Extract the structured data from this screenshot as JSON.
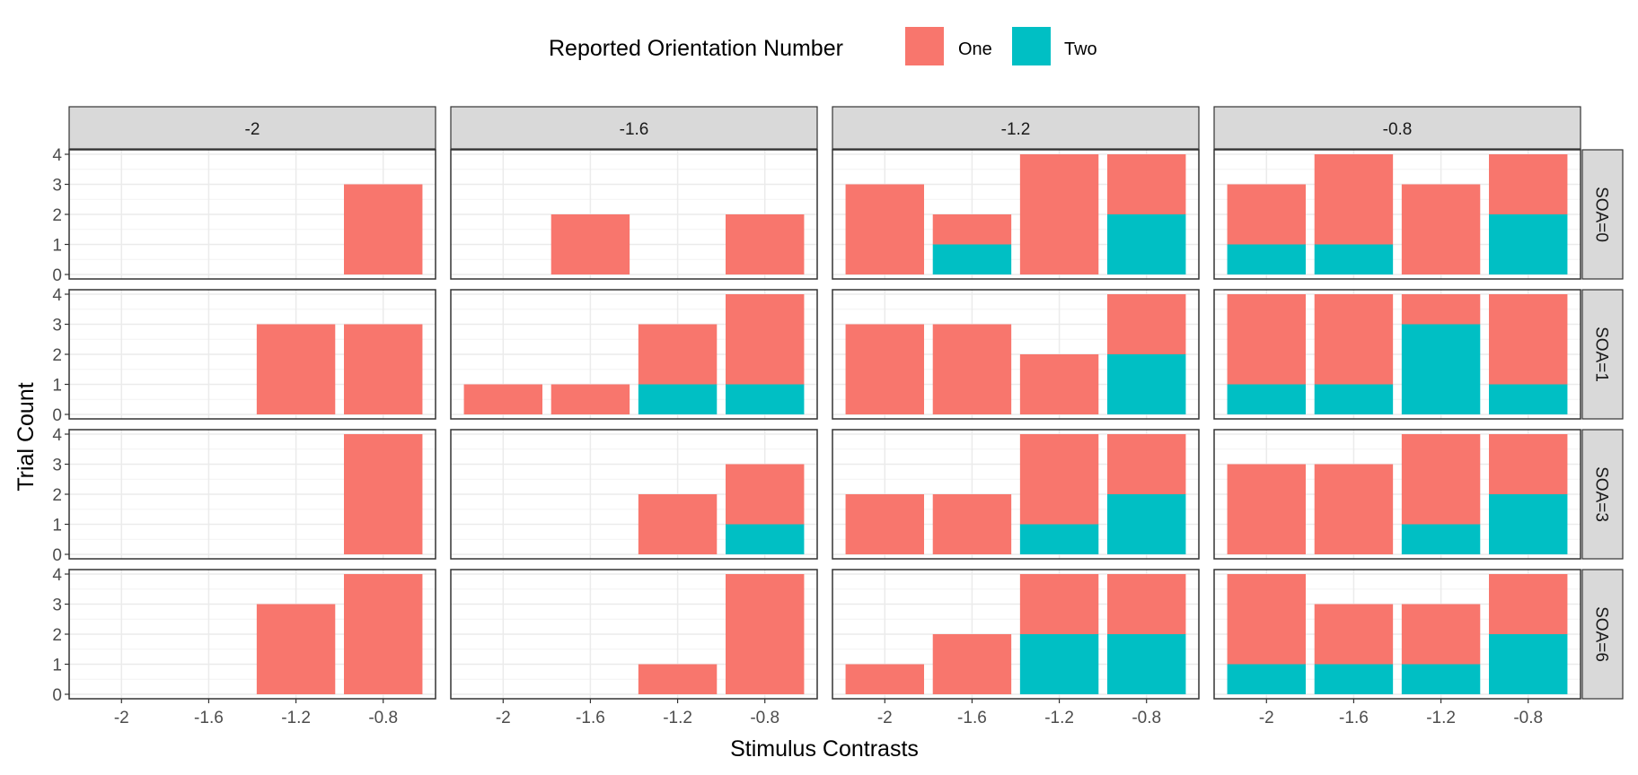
{
  "chart_data": {
    "type": "bar",
    "stacked": true,
    "xlabel": "Stimulus Contrasts",
    "ylabel": "Trial Count",
    "legend": {
      "title": "Reported Orientation Number",
      "position": "top",
      "entries": [
        {
          "name": "One",
          "color": "#F8766D"
        },
        {
          "name": "Two",
          "color": "#00BFC4"
        }
      ]
    },
    "grid": true,
    "ylim": [
      0,
      4
    ],
    "yticks": [
      "0",
      "1",
      "2",
      "3",
      "4"
    ],
    "categories": [
      "-2",
      "-1.6",
      "-1.2",
      "-0.8"
    ],
    "column_facets": [
      "-2",
      "-1.6",
      "-1.2",
      "-0.8"
    ],
    "row_facets": [
      "SOA=0",
      "SOA=1",
      "SOA=3",
      "SOA=6"
    ],
    "panels": [
      [
        {
          "one": [
            0,
            0,
            0,
            3
          ],
          "two": [
            0,
            0,
            0,
            0
          ]
        },
        {
          "one": [
            0,
            2,
            0,
            2
          ],
          "two": [
            0,
            0,
            0,
            0
          ]
        },
        {
          "one": [
            3,
            1,
            4,
            2
          ],
          "two": [
            0,
            1,
            0,
            2
          ]
        },
        {
          "one": [
            2,
            3,
            3,
            2
          ],
          "two": [
            1,
            1,
            0,
            2
          ]
        }
      ],
      [
        {
          "one": [
            0,
            0,
            3,
            3
          ],
          "two": [
            0,
            0,
            0,
            0
          ]
        },
        {
          "one": [
            1,
            1,
            2,
            3
          ],
          "two": [
            0,
            0,
            1,
            1
          ]
        },
        {
          "one": [
            3,
            3,
            2,
            2
          ],
          "two": [
            0,
            0,
            0,
            2
          ]
        },
        {
          "one": [
            3,
            3,
            1,
            3
          ],
          "two": [
            1,
            1,
            3,
            1
          ]
        }
      ],
      [
        {
          "one": [
            0,
            0,
            0,
            4
          ],
          "two": [
            0,
            0,
            0,
            0
          ]
        },
        {
          "one": [
            0,
            0,
            2,
            2
          ],
          "two": [
            0,
            0,
            0,
            1
          ]
        },
        {
          "one": [
            2,
            2,
            3,
            2
          ],
          "two": [
            0,
            0,
            1,
            2
          ]
        },
        {
          "one": [
            3,
            3,
            3,
            2
          ],
          "two": [
            0,
            0,
            1,
            2
          ]
        }
      ],
      [
        {
          "one": [
            0,
            0,
            3,
            4
          ],
          "two": [
            0,
            0,
            0,
            0
          ]
        },
        {
          "one": [
            0,
            0,
            1,
            4
          ],
          "two": [
            0,
            0,
            0,
            0
          ]
        },
        {
          "one": [
            1,
            2,
            2,
            2
          ],
          "two": [
            0,
            0,
            2,
            2
          ]
        },
        {
          "one": [
            3,
            2,
            2,
            2
          ],
          "two": [
            1,
            1,
            1,
            2
          ]
        }
      ]
    ]
  }
}
